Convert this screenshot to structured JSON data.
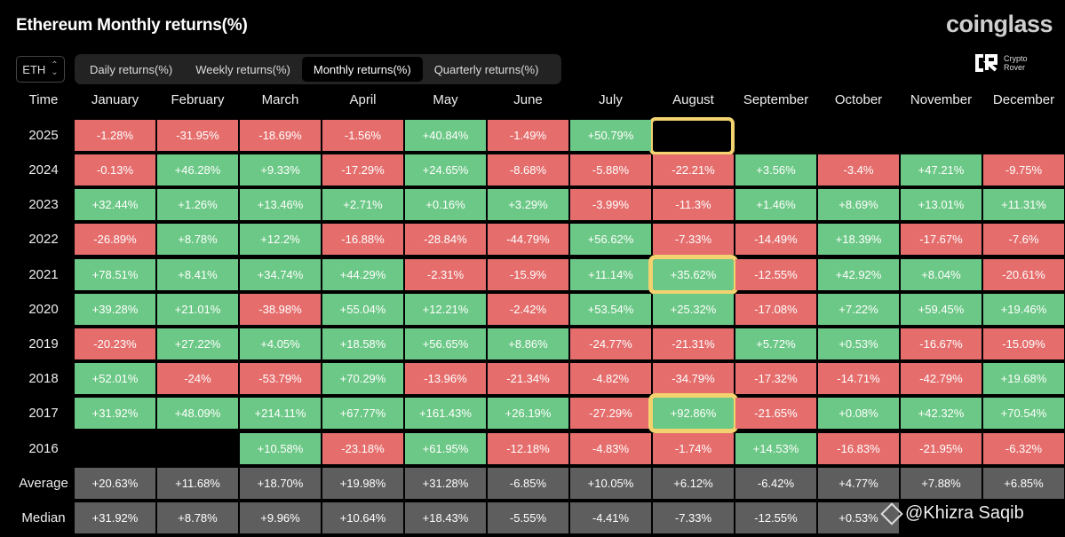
{
  "header": {
    "title": "Ethereum Monthly returns(%)",
    "brand": "coinglass",
    "badge_line1": "Crypto",
    "badge_line2": "Rover"
  },
  "controls": {
    "symbol": "ETH",
    "tabs": [
      "Daily returns(%)",
      "Weekly returns(%)",
      "Monthly returns(%)",
      "Quarterly returns(%)"
    ],
    "active_tab": "Monthly returns(%)"
  },
  "colors": {
    "positive": "#6cc886",
    "negative": "#e56e6d",
    "summary": "#5e5e5e",
    "highlight": "#f3d270"
  },
  "table": {
    "time_header": "Time",
    "months": [
      "January",
      "February",
      "March",
      "April",
      "May",
      "June",
      "July",
      "August",
      "September",
      "October",
      "November",
      "December"
    ],
    "rows": [
      {
        "label": "2025",
        "values": [
          "-1.28%",
          "-31.95%",
          "-18.69%",
          "-1.56%",
          "+40.84%",
          "-1.49%",
          "+50.79%",
          "",
          "",
          "",
          "",
          ""
        ]
      },
      {
        "label": "2024",
        "values": [
          "-0.13%",
          "+46.28%",
          "+9.33%",
          "-17.29%",
          "+24.65%",
          "-8.68%",
          "-5.88%",
          "-22.21%",
          "+3.56%",
          "-3.4%",
          "+47.21%",
          "-9.75%"
        ]
      },
      {
        "label": "2023",
        "values": [
          "+32.44%",
          "+1.26%",
          "+13.46%",
          "+2.71%",
          "+0.16%",
          "+3.29%",
          "-3.99%",
          "-11.3%",
          "+1.46%",
          "+8.69%",
          "+13.01%",
          "+11.31%"
        ]
      },
      {
        "label": "2022",
        "values": [
          "-26.89%",
          "+8.78%",
          "+12.2%",
          "-16.88%",
          "-28.84%",
          "-44.79%",
          "+56.62%",
          "-7.33%",
          "-14.49%",
          "+18.39%",
          "-17.67%",
          "-7.6%"
        ]
      },
      {
        "label": "2021",
        "values": [
          "+78.51%",
          "+8.41%",
          "+34.74%",
          "+44.29%",
          "-2.31%",
          "-15.9%",
          "+11.14%",
          "+35.62%",
          "-12.55%",
          "+42.92%",
          "+8.04%",
          "-20.61%"
        ]
      },
      {
        "label": "2020",
        "values": [
          "+39.28%",
          "+21.01%",
          "-38.98%",
          "+55.04%",
          "+12.21%",
          "-2.42%",
          "+53.54%",
          "+25.32%",
          "-17.08%",
          "+7.22%",
          "+59.45%",
          "+19.46%"
        ]
      },
      {
        "label": "2019",
        "values": [
          "-20.23%",
          "+27.22%",
          "+4.05%",
          "+18.58%",
          "+56.65%",
          "+8.86%",
          "-24.77%",
          "-21.31%",
          "+5.72%",
          "+0.53%",
          "-16.67%",
          "-15.09%"
        ]
      },
      {
        "label": "2018",
        "values": [
          "+52.01%",
          "-24%",
          "-53.79%",
          "+70.29%",
          "-13.96%",
          "-21.34%",
          "-4.82%",
          "-34.79%",
          "-17.32%",
          "-14.71%",
          "-42.79%",
          "+19.68%"
        ]
      },
      {
        "label": "2017",
        "values": [
          "+31.92%",
          "+48.09%",
          "+214.11%",
          "+67.77%",
          "+161.43%",
          "+26.19%",
          "-27.29%",
          "+92.86%",
          "-21.65%",
          "+0.08%",
          "+42.32%",
          "+70.54%"
        ]
      },
      {
        "label": "2016",
        "values": [
          "",
          "",
          "+10.58%",
          "-23.18%",
          "+61.95%",
          "-12.18%",
          "-4.83%",
          "-1.74%",
          "+14.53%",
          "-16.83%",
          "-21.95%",
          "-6.32%"
        ]
      }
    ],
    "summary": [
      {
        "label": "Average",
        "values": [
          "+20.63%",
          "+11.68%",
          "+18.70%",
          "+19.98%",
          "+31.28%",
          "-6.85%",
          "+10.05%",
          "+6.12%",
          "-6.42%",
          "+4.77%",
          "+7.88%",
          "+6.85%"
        ]
      },
      {
        "label": "Median",
        "values": [
          "+31.92%",
          "+8.78%",
          "+9.96%",
          "+10.64%",
          "+18.43%",
          "-5.55%",
          "-4.41%",
          "-7.33%",
          "-12.55%",
          "+0.53%",
          "",
          ""
        ]
      }
    ],
    "highlighted": [
      {
        "row": "2025",
        "month": "August"
      },
      {
        "row": "2021",
        "month": "August"
      },
      {
        "row": "2017",
        "month": "August"
      }
    ]
  },
  "watermark": "@Khizra Saqib"
}
